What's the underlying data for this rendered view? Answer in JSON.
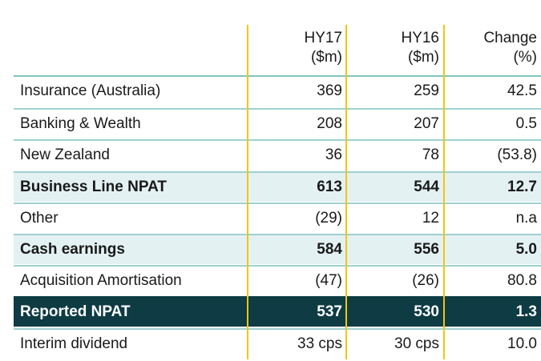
{
  "headers": {
    "hy17": [
      "HY17",
      "($m)"
    ],
    "hy16": [
      "HY16",
      "($m)"
    ],
    "change": [
      "Change",
      "(%)"
    ]
  },
  "rows": [
    {
      "label": "Insurance (Australia)",
      "hy17": "369",
      "hy16": "259",
      "change": "42.5",
      "style": "plain"
    },
    {
      "label": "Banking & Wealth",
      "hy17": "208",
      "hy16": "207",
      "change": "0.5",
      "style": "plain"
    },
    {
      "label": "New Zealand",
      "hy17": "36",
      "hy16": "78",
      "change": "(53.8)",
      "style": "plain"
    },
    {
      "label": "Business Line NPAT",
      "hy17": "613",
      "hy16": "544",
      "change": "12.7",
      "style": "shaded"
    },
    {
      "label": "Other",
      "hy17": "(29)",
      "hy16": "12",
      "change": "n.a",
      "style": "plain"
    },
    {
      "label": "Cash earnings",
      "hy17": "584",
      "hy16": "556",
      "change": "5.0",
      "style": "shaded"
    },
    {
      "label": "Acquisition Amortisation",
      "hy17": "(47)",
      "hy16": "(26)",
      "change": "80.8",
      "style": "plain"
    },
    {
      "label": "Reported NPAT",
      "hy17": "537",
      "hy16": "530",
      "change": "1.3",
      "style": "dark"
    },
    {
      "label": "Interim dividend",
      "hy17": "33 cps",
      "hy16": "30 cps",
      "change": "10.0",
      "style": "plain"
    }
  ],
  "colors": {
    "divider": "#f2c511",
    "rule": "#9fd0d2",
    "shaded_row": "#e3f1f2",
    "dark_row": "#0e3b44"
  }
}
